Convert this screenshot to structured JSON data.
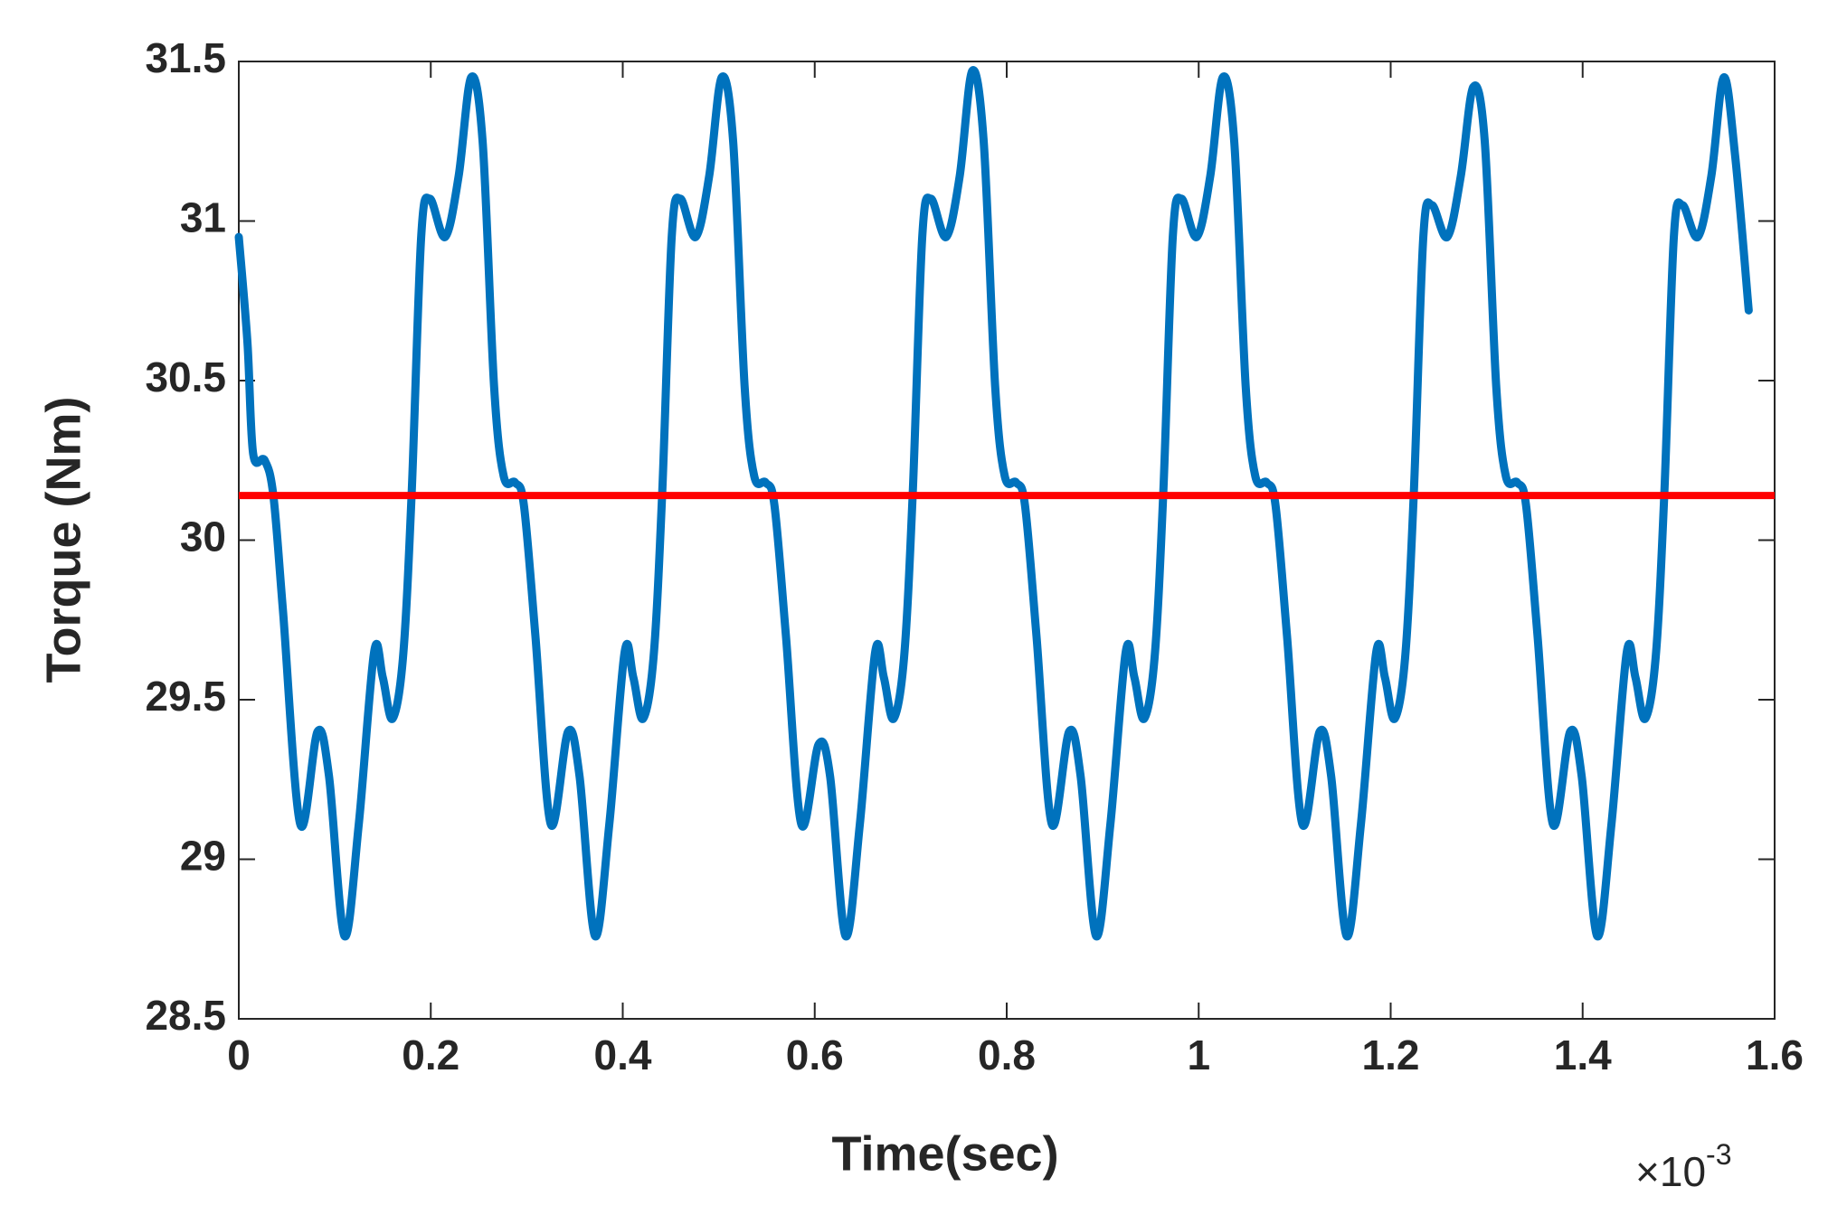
{
  "chart_data": {
    "type": "line",
    "xlabel": "Time(sec)",
    "ylabel": "Torque (Nm)",
    "x_multiplier": "×10",
    "x_multiplier_exponent": "-3",
    "xlim": [
      0,
      1.6
    ],
    "xticks": [
      0,
      0.2,
      0.4,
      0.6,
      0.8,
      1,
      1.2,
      1.4,
      1.6
    ],
    "ylim": [
      28.5,
      31.5
    ],
    "yticks": [
      28.5,
      29,
      29.5,
      30,
      30.5,
      31,
      31.5
    ],
    "reference_line": {
      "value": 30.14,
      "color": "#ff0000"
    },
    "series": [
      {
        "color": "#0072bd",
        "x": [
          0,
          0.009,
          0.015,
          0.027,
          0.036,
          0.046,
          0.064,
          0.082,
          0.094,
          0.11,
          0.125,
          0.141,
          0.15,
          0.16,
          0.171,
          0.18,
          0.19,
          0.199,
          0.215,
          0.229,
          0.242,
          0.254,
          0.266,
          0.276,
          0.288,
          0.297,
          0.309,
          0.325,
          0.343,
          0.355,
          0.371,
          0.386,
          0.402,
          0.411,
          0.421,
          0.432,
          0.441,
          0.451,
          0.46,
          0.476,
          0.49,
          0.503,
          0.515,
          0.527,
          0.537,
          0.549,
          0.558,
          0.57,
          0.586,
          0.604,
          0.616,
          0.632,
          0.647,
          0.663,
          0.672,
          0.682,
          0.693,
          0.702,
          0.712,
          0.721,
          0.737,
          0.751,
          0.764,
          0.776,
          0.788,
          0.798,
          0.81,
          0.819,
          0.831,
          0.847,
          0.865,
          0.877,
          0.893,
          0.908,
          0.924,
          0.933,
          0.943,
          0.954,
          0.963,
          0.973,
          0.982,
          0.998,
          1.012,
          1.025,
          1.037,
          1.049,
          1.059,
          1.071,
          1.08,
          1.092,
          1.108,
          1.126,
          1.138,
          1.154,
          1.169,
          1.185,
          1.194,
          1.204,
          1.215,
          1.224,
          1.234,
          1.243,
          1.259,
          1.273,
          1.286,
          1.298,
          1.31,
          1.32,
          1.332,
          1.341,
          1.353,
          1.369,
          1.387,
          1.399,
          1.415,
          1.43,
          1.446,
          1.455,
          1.465,
          1.476,
          1.485,
          1.495,
          1.504,
          1.52,
          1.534,
          1.547,
          1.559,
          1.573
        ],
        "values": [
          30.95,
          30.62,
          30.27,
          30.25,
          30.14,
          29.78,
          29.11,
          29.4,
          29.26,
          28.76,
          29.11,
          29.65,
          29.57,
          29.44,
          29.63,
          30.14,
          30.95,
          31.07,
          30.95,
          31.14,
          31.45,
          31.25,
          30.48,
          30.2,
          30.18,
          30.11,
          29.7,
          29.11,
          29.4,
          29.26,
          28.76,
          29.11,
          29.65,
          29.57,
          29.44,
          29.63,
          30.14,
          30.95,
          31.07,
          30.95,
          31.14,
          31.45,
          31.25,
          30.48,
          30.2,
          30.18,
          30.11,
          29.7,
          29.11,
          29.36,
          29.26,
          28.76,
          29.11,
          29.65,
          29.57,
          29.44,
          29.63,
          30.14,
          30.95,
          31.07,
          30.95,
          31.14,
          31.47,
          31.25,
          30.48,
          30.2,
          30.18,
          30.11,
          29.7,
          29.11,
          29.4,
          29.26,
          28.76,
          29.11,
          29.65,
          29.57,
          29.44,
          29.63,
          30.14,
          30.95,
          31.07,
          30.95,
          31.14,
          31.45,
          31.25,
          30.48,
          30.2,
          30.18,
          30.11,
          29.7,
          29.11,
          29.4,
          29.26,
          28.76,
          29.11,
          29.65,
          29.57,
          29.44,
          29.63,
          30.14,
          30.95,
          31.05,
          30.95,
          31.14,
          31.42,
          31.25,
          30.48,
          30.2,
          30.18,
          30.11,
          29.7,
          29.11,
          29.4,
          29.26,
          28.76,
          29.11,
          29.65,
          29.57,
          29.44,
          29.63,
          30.14,
          30.95,
          31.05,
          30.95,
          31.14,
          31.45,
          31.2,
          30.72
        ]
      }
    ]
  }
}
